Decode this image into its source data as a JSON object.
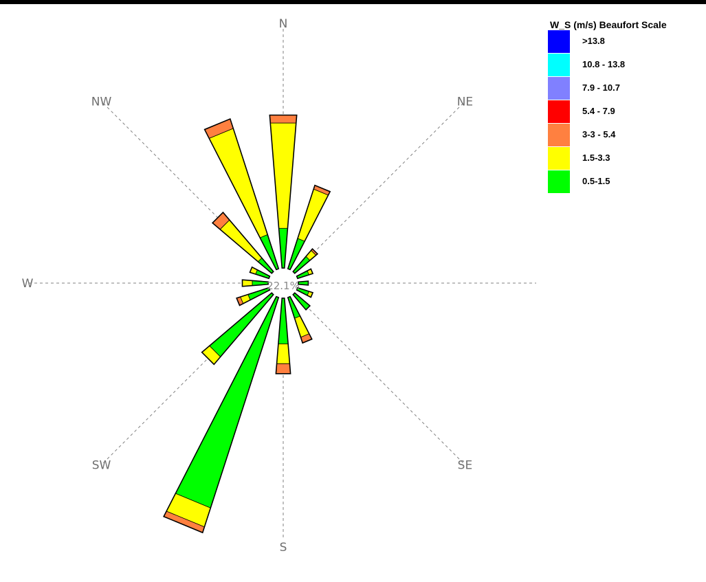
{
  "chart_data": {
    "type": "wind-rose",
    "directions": [
      "N",
      "NE",
      "E",
      "SE",
      "S",
      "SW",
      "W",
      "NW"
    ],
    "direction_angles": [
      0,
      45,
      90,
      135,
      180,
      225,
      270,
      315
    ],
    "calm": "22.1%",
    "legend": {
      "title": "W_S (m/s) Beaufort Scale",
      "bins": [
        {
          "label": ">13.8",
          "color": "#0000ff"
        },
        {
          "label": "10.8 - 13.8",
          "color": "#00ffff"
        },
        {
          "label": "7.9 - 10.7",
          "color": "#8080ff"
        },
        {
          "label": "5.4 - 7.9",
          "color": "#ff0000"
        },
        {
          "label": "3-3 - 5.4",
          "color": "#ff8040"
        },
        {
          "label": "1.5-3.3",
          "color": "#ffff00"
        },
        {
          "label": "0.5-1.5",
          "color": "#00ff00"
        }
      ]
    },
    "stack_order": [
      "0.5-1.5",
      "1.5-3.3",
      "3-3 - 5.4"
    ],
    "stack_colors": [
      "#00ff00",
      "#ffff00",
      "#ff8040"
    ],
    "sectors": [
      {
        "angle": 0,
        "values": [
          0.2,
          0.53,
          0.04
        ]
      },
      {
        "angle": 22.5,
        "values": [
          0.16,
          0.26,
          0.02
        ]
      },
      {
        "angle": 45,
        "values": [
          0.1,
          0.04,
          0.01
        ]
      },
      {
        "angle": 67.5,
        "values": [
          0.06,
          0.02,
          0.0
        ]
      },
      {
        "angle": 90,
        "values": [
          0.05,
          0.0,
          0.0
        ]
      },
      {
        "angle": 112.5,
        "values": [
          0.06,
          0.02,
          0.0
        ]
      },
      {
        "angle": 135,
        "values": [
          0.1,
          0.0,
          0.0
        ]
      },
      {
        "angle": 157.5,
        "values": [
          0.11,
          0.1,
          0.03
        ]
      },
      {
        "angle": 180,
        "values": [
          0.23,
          0.1,
          0.05
        ]
      },
      {
        "angle": 202.5,
        "values": [
          1.11,
          0.1,
          0.03
        ]
      },
      {
        "angle": 225,
        "values": [
          0.41,
          0.05,
          0.0
        ]
      },
      {
        "angle": 247.5,
        "values": [
          0.11,
          0.04,
          0.02
        ]
      },
      {
        "angle": 270,
        "values": [
          0.08,
          0.05,
          0.0
        ]
      },
      {
        "angle": 292.5,
        "values": [
          0.07,
          0.03,
          0.0
        ]
      },
      {
        "angle": 315,
        "values": [
          0.09,
          0.25,
          0.05
        ]
      },
      {
        "angle": 337.5,
        "values": [
          0.18,
          0.56,
          0.05
        ]
      }
    ],
    "scale_max": 1.29
  }
}
